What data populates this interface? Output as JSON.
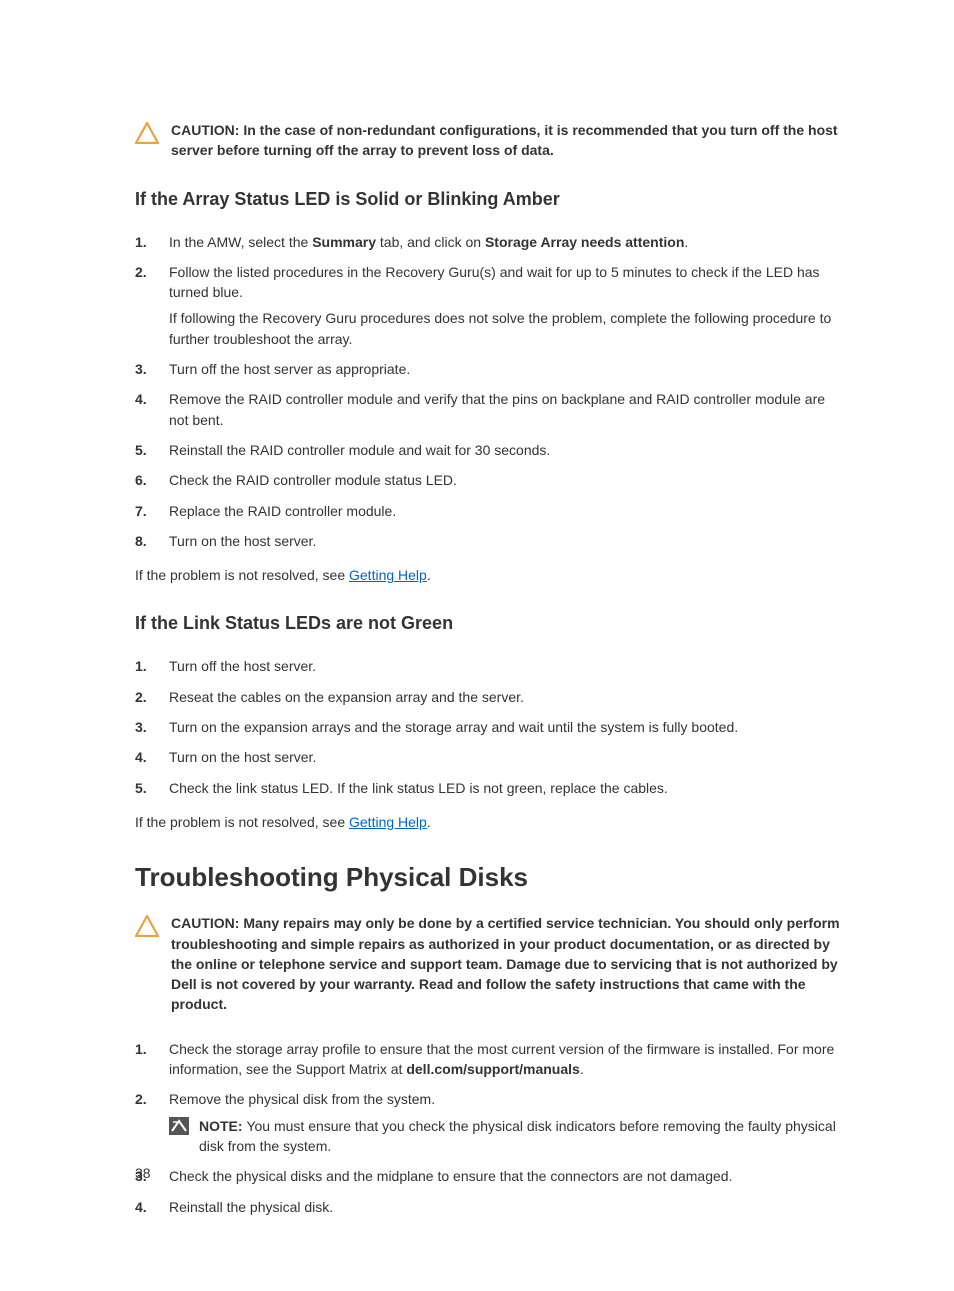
{
  "page_number": "38",
  "caution1": {
    "label": "CAUTION: ",
    "text": "In the case of non-redundant configurations, it is recommended that you turn off the host server before turning off the array to prevent loss of data.",
    "icon_color": "#e8a33d",
    "icon_stroke": "#333333"
  },
  "section1": {
    "heading": "If the Array Status LED is Solid or Blinking Amber",
    "steps_html": [
      "In the AMW, select the <span class=\"bold\">Summary</span> tab, and click on <span class=\"bold\">Storage Array needs attention</span>.",
      "Follow the listed procedures in the Recovery Guru(s) and wait for up to 5 minutes to check if the LED has turned blue.<div class=\"body-para\">If following the Recovery Guru procedures does not solve the problem, complete the following procedure to further troubleshoot the array.</div>",
      "Turn off the host server as appropriate.",
      "Remove the RAID controller module and verify that the pins on backplane and RAID controller module are not bent.",
      "Reinstall the RAID controller module and wait for 30 seconds.",
      "Check the RAID controller module status LED.",
      "Replace the RAID controller module.",
      "Turn on the host server."
    ],
    "after_text_prefix": "If the problem is not resolved, see ",
    "after_link": "Getting Help",
    "after_text_suffix": "."
  },
  "section2": {
    "heading": "If the Link Status LEDs are not Green",
    "steps_html": [
      "Turn off the host server.",
      "Reseat the cables on the expansion array and the server.",
      "Turn on the expansion arrays and the storage array and wait until the system is fully booted.",
      "Turn on the host server.",
      "Check the link status LED. If the link status LED is not green, replace the cables."
    ],
    "after_text_prefix": "If the problem is not resolved, see ",
    "after_link": "Getting Help",
    "after_text_suffix": "."
  },
  "section3": {
    "heading": "Troubleshooting Physical Disks",
    "caution": {
      "label": "CAUTION: ",
      "text": "Many repairs may only be done by a certified service technician. You should only perform troubleshooting and simple repairs as authorized in your product documentation, or as directed by the online or telephone service and support team. Damage due to servicing that is not authorized by Dell is not covered by your warranty. Read and follow the safety instructions that came with the product."
    },
    "steps": [
      {
        "html": "Check the storage array profile to ensure that the most current version of the firmware is installed. For more information, see the Support Matrix at <span class=\"bold\">dell.com/support/manuals</span>."
      },
      {
        "html": "Remove the physical disk from the system.",
        "note_label": "NOTE: ",
        "note_text": "You must ensure that you check the physical disk indicators before removing the faulty physical disk from the system."
      },
      {
        "html": "Check the physical disks and the midplane to ensure that the connectors are not damaged."
      },
      {
        "html": "Reinstall the physical disk."
      }
    ]
  },
  "colors": {
    "text": "#333333",
    "link": "#0066cc",
    "caution_icon": "#e8a33d",
    "note_icon_bg": "#555555",
    "background": "#ffffff"
  },
  "typography": {
    "body_fontsize": 14,
    "section_heading_fontsize": 18,
    "major_heading_fontsize": 26
  }
}
